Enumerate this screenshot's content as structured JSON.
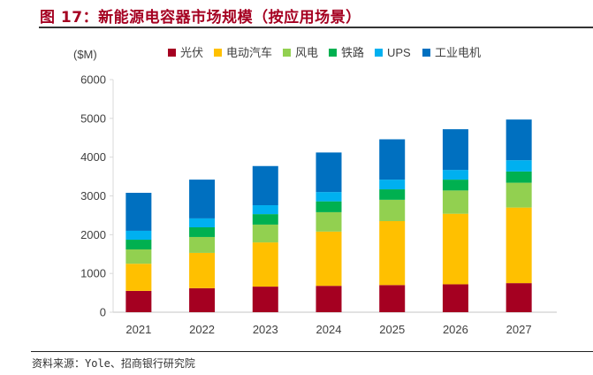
{
  "figure": {
    "title": "图 17：新能源电容器市场规模（按应用场景）",
    "source": "资料来源：Yole、招商银行研究院"
  },
  "chart_data": {
    "type": "bar",
    "stacked": true,
    "title": "图 17：新能源电容器市场规模（按应用场景）",
    "ylabel": "($M)",
    "xlabel": "",
    "ylim": [
      0,
      6000
    ],
    "yticks": [
      0,
      1000,
      2000,
      3000,
      4000,
      5000,
      6000
    ],
    "grid": false,
    "legend_position": "top",
    "categories": [
      "2021",
      "2022",
      "2023",
      "2024",
      "2025",
      "2026",
      "2027"
    ],
    "series": [
      {
        "name": "光伏",
        "color": "#a50021",
        "values": [
          550,
          620,
          660,
          680,
          700,
          720,
          750
        ]
      },
      {
        "name": "电动汽车",
        "color": "#ffc000",
        "values": [
          700,
          910,
          1140,
          1400,
          1650,
          1820,
          1950
        ]
      },
      {
        "name": "风电",
        "color": "#92d050",
        "values": [
          370,
          410,
          460,
          500,
          550,
          600,
          640
        ]
      },
      {
        "name": "铁路",
        "color": "#00b050",
        "values": [
          250,
          250,
          270,
          280,
          270,
          280,
          290
        ]
      },
      {
        "name": "UPS",
        "color": "#00b0f0",
        "values": [
          230,
          230,
          230,
          240,
          250,
          250,
          290
        ]
      },
      {
        "name": "工业电机",
        "color": "#0070c0",
        "values": [
          980,
          1000,
          1010,
          1020,
          1040,
          1050,
          1050
        ]
      }
    ]
  }
}
